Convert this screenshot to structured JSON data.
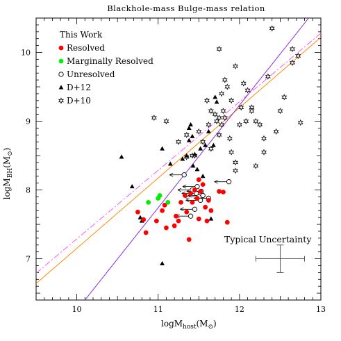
{
  "chart_data": {
    "type": "scatter",
    "title": "Blackhole-mass Bulge-mass relation",
    "xlabel": {
      "main": "logM",
      "sub": "host",
      "unit": "(M",
      "sun": "⊙",
      "close": ")"
    },
    "ylabel": {
      "main": "logM",
      "sub": "BH",
      "unit": "(M",
      "sun": "⊙",
      "close": ")"
    },
    "xlim": [
      9.5,
      13
    ],
    "ylim": [
      6.4,
      10.5
    ],
    "xticks": [
      10,
      11,
      12,
      13
    ],
    "yticks": [
      7,
      8,
      9,
      10
    ],
    "legend": {
      "title": "This Work",
      "placement": "top-left",
      "entries": [
        {
          "label": "Resolved",
          "marker": "filled-circle",
          "color": "#ff0000"
        },
        {
          "label": "Marginally Resolved",
          "marker": "filled-circle",
          "color": "#00ee00"
        },
        {
          "label": "Unresolved",
          "marker": "open-circle",
          "color": "#000000"
        },
        {
          "label": "D+12",
          "marker": "triangle",
          "color": "#000000"
        },
        {
          "label": "D+10",
          "marker": "star",
          "color": "#000000"
        }
      ]
    },
    "series": [
      {
        "name": "Resolved",
        "points": [
          [
            10.75,
            7.68
          ],
          [
            10.82,
            7.57
          ],
          [
            10.85,
            7.38
          ],
          [
            10.98,
            7.55
          ],
          [
            11.05,
            7.7
          ],
          [
            11.08,
            7.78
          ],
          [
            11.1,
            7.45
          ],
          [
            11.2,
            7.48
          ],
          [
            11.22,
            7.62
          ],
          [
            11.25,
            7.55
          ],
          [
            11.28,
            7.82
          ],
          [
            11.33,
            7.92
          ],
          [
            11.35,
            7.68
          ],
          [
            11.38,
            7.28
          ],
          [
            11.4,
            7.95
          ],
          [
            11.42,
            7.82
          ],
          [
            11.45,
            8.0
          ],
          [
            11.48,
            7.88
          ],
          [
            11.5,
            7.58
          ],
          [
            11.5,
            8.15
          ],
          [
            11.52,
            7.98
          ],
          [
            11.55,
            8.08
          ],
          [
            11.58,
            7.75
          ],
          [
            11.6,
            7.55
          ],
          [
            11.62,
            7.85
          ],
          [
            11.65,
            7.7
          ],
          [
            11.75,
            7.98
          ],
          [
            11.8,
            7.97
          ],
          [
            11.85,
            7.53
          ]
        ]
      },
      {
        "name": "Marginally Resolved",
        "points": [
          [
            10.88,
            7.82
          ],
          [
            11.0,
            7.88
          ],
          [
            11.02,
            7.92
          ],
          [
            11.12,
            7.82
          ]
        ]
      },
      {
        "name": "Unresolved",
        "points": [
          [
            11.32,
            8.22
          ],
          [
            11.4,
            7.62
          ],
          [
            11.42,
            8.0
          ],
          [
            11.45,
            7.72
          ],
          [
            11.47,
            7.95
          ],
          [
            11.48,
            8.05
          ],
          [
            11.5,
            7.9
          ],
          [
            11.52,
            7.85
          ],
          [
            11.53,
            7.98
          ],
          [
            11.55,
            7.92
          ],
          [
            11.62,
            7.88
          ],
          [
            11.87,
            8.12
          ]
        ]
      },
      {
        "name": "D+12",
        "points": [
          [
            10.55,
            8.48
          ],
          [
            10.68,
            8.05
          ],
          [
            10.78,
            7.6
          ],
          [
            10.8,
            7.55
          ],
          [
            11.05,
            8.6
          ],
          [
            11.05,
            6.93
          ],
          [
            11.15,
            8.38
          ],
          [
            11.3,
            8.45
          ],
          [
            11.35,
            8.5
          ],
          [
            11.38,
            8.72
          ],
          [
            11.38,
            8.9
          ],
          [
            11.4,
            8.95
          ],
          [
            11.42,
            8.78
          ],
          [
            11.43,
            8.35
          ],
          [
            11.45,
            8.52
          ],
          [
            11.48,
            8.3
          ],
          [
            11.52,
            8.6
          ],
          [
            11.55,
            8.2
          ],
          [
            11.58,
            8.65
          ],
          [
            11.62,
            8.85
          ],
          [
            11.65,
            7.58
          ],
          [
            11.7,
            9.35
          ],
          [
            11.72,
            9.28
          ],
          [
            11.68,
            8.65
          ]
        ]
      },
      {
        "name": "D+10",
        "points": [
          [
            10.95,
            9.05
          ],
          [
            11.1,
            9.0
          ],
          [
            11.25,
            8.7
          ],
          [
            11.35,
            8.8
          ],
          [
            11.35,
            8.48
          ],
          [
            11.42,
            8.5
          ],
          [
            11.45,
            8.5
          ],
          [
            11.5,
            8.85
          ],
          [
            11.55,
            8.7
          ],
          [
            11.6,
            9.3
          ],
          [
            11.62,
            8.95
          ],
          [
            11.65,
            9.15
          ],
          [
            11.65,
            8.6
          ],
          [
            11.7,
            9.1
          ],
          [
            11.72,
            9.0
          ],
          [
            11.75,
            9.05
          ],
          [
            11.75,
            8.8
          ],
          [
            11.78,
            9.4
          ],
          [
            11.78,
            8.95
          ],
          [
            11.8,
            9.15
          ],
          [
            11.82,
            9.05
          ],
          [
            11.82,
            9.6
          ],
          [
            11.85,
            9.5
          ],
          [
            11.88,
            8.75
          ],
          [
            11.9,
            8.55
          ],
          [
            11.9,
            9.3
          ],
          [
            11.95,
            8.4
          ],
          [
            11.95,
            8.28
          ],
          [
            12.0,
            8.95
          ],
          [
            12.02,
            9.2
          ],
          [
            12.05,
            9.55
          ],
          [
            12.08,
            9.0
          ],
          [
            12.1,
            9.45
          ],
          [
            12.15,
            9.2
          ],
          [
            12.15,
            9.15
          ],
          [
            12.2,
            8.35
          ],
          [
            12.2,
            9.0
          ],
          [
            12.25,
            8.95
          ],
          [
            12.3,
            8.55
          ],
          [
            12.3,
            8.75
          ],
          [
            12.35,
            9.65
          ],
          [
            12.4,
            10.35
          ],
          [
            12.45,
            8.85
          ],
          [
            12.5,
            9.15
          ],
          [
            12.55,
            9.35
          ],
          [
            12.65,
            10.05
          ],
          [
            12.65,
            9.85
          ],
          [
            12.72,
            9.95
          ],
          [
            12.75,
            8.98
          ],
          [
            11.75,
            10.05
          ],
          [
            11.95,
            9.8
          ]
        ]
      }
    ],
    "arrows": [
      [
        11.32,
        8.22
      ],
      [
        11.4,
        7.62
      ],
      [
        11.42,
        8.0
      ],
      [
        11.45,
        7.72
      ],
      [
        11.47,
        7.95
      ],
      [
        11.48,
        8.05
      ],
      [
        11.5,
        7.9
      ],
      [
        11.52,
        7.85
      ],
      [
        11.53,
        7.98
      ],
      [
        11.55,
        7.92
      ],
      [
        11.62,
        7.88
      ],
      [
        11.87,
        8.12
      ]
    ],
    "fit_lines": [
      {
        "color": "#ff8800",
        "dash": "solid",
        "p1": [
          9.5,
          6.64
        ],
        "p2": [
          13,
          10.22
        ]
      },
      {
        "color": "#ff55ff",
        "dash": "dashdot",
        "p1": [
          9.5,
          6.79
        ],
        "p2": [
          13,
          10.28
        ]
      },
      {
        "color": "#8a2be2",
        "dash": "solid",
        "p1": [
          10.1,
          6.4
        ],
        "p2": [
          12.85,
          10.5
        ]
      }
    ],
    "typical_uncertainty": {
      "label": "Typical Uncertainty",
      "center": [
        12.5,
        7.0
      ],
      "xerr": 0.3,
      "yerr": 0.2
    }
  }
}
